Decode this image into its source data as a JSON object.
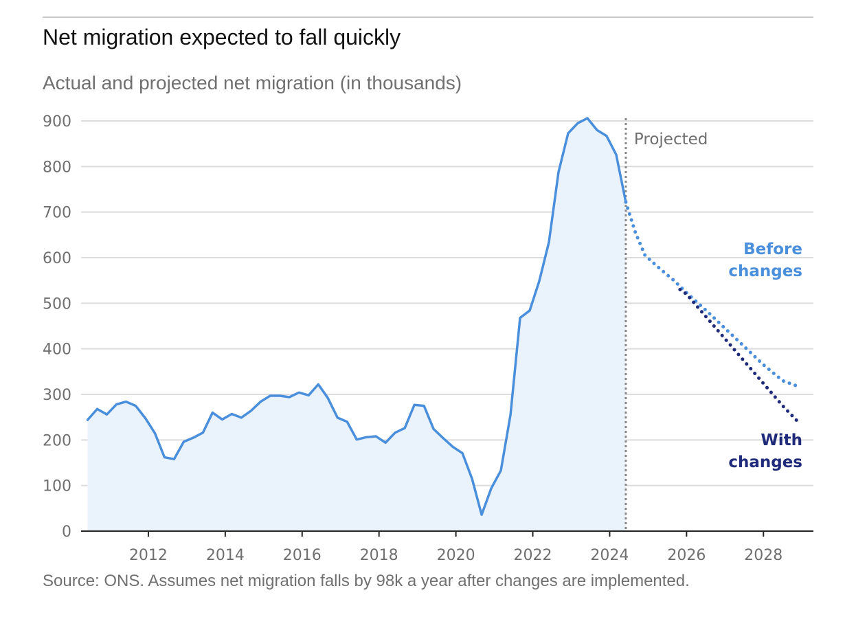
{
  "header": {
    "title": "Net migration expected to fall quickly",
    "subtitle": "Actual and projected net migration (in thousands)"
  },
  "footer": {
    "source": "Source: ONS. Assumes net migration falls by 98k a year after changes are implemented."
  },
  "colors": {
    "actual": "#4a8fdc",
    "fill": "#eaf2fb",
    "before_changes": "#4a8fdc",
    "with_changes": "#1f2a7a",
    "grid": "#dcdcdc",
    "projection_line": "#888888"
  },
  "chart_data": {
    "type": "line",
    "title": "Net migration expected to fall quickly",
    "subtitle": "Actual and projected net migration (in thousands)",
    "xlim": [
      2010.25,
      2029.3
    ],
    "ylim": [
      0,
      900
    ],
    "x_ticks": [
      2012,
      2014,
      2016,
      2018,
      2020,
      2022,
      2024,
      2026,
      2028
    ],
    "y_ticks": [
      0,
      100,
      200,
      300,
      400,
      500,
      600,
      700,
      800,
      900
    ],
    "grid": true,
    "projection_start": 2024.42,
    "projection_label": "Projected",
    "series": [
      {
        "name": "",
        "style": "solid-area",
        "x": [
          2010.42,
          2010.67,
          2010.92,
          2011.17,
          2011.42,
          2011.67,
          2011.92,
          2012.17,
          2012.42,
          2012.67,
          2012.92,
          2013.17,
          2013.42,
          2013.67,
          2013.92,
          2014.17,
          2014.42,
          2014.67,
          2014.92,
          2015.17,
          2015.42,
          2015.67,
          2015.92,
          2016.17,
          2016.42,
          2016.67,
          2016.92,
          2017.17,
          2017.42,
          2017.67,
          2017.92,
          2018.17,
          2018.42,
          2018.67,
          2018.92,
          2019.17,
          2019.42,
          2019.67,
          2019.92,
          2020.17,
          2020.42,
          2020.67,
          2020.92,
          2021.17,
          2021.42,
          2021.67,
          2021.92,
          2022.17,
          2022.42,
          2022.67,
          2022.92,
          2023.17,
          2023.42,
          2023.67,
          2023.92,
          2024.17,
          2024.42
        ],
        "values": [
          244,
          268,
          256,
          278,
          284,
          275,
          248,
          215,
          162,
          158,
          196,
          205,
          216,
          260,
          245,
          257,
          249,
          264,
          284,
          297,
          297,
          294,
          304,
          298,
          322,
          292,
          249,
          240,
          201,
          206,
          208,
          194,
          216,
          226,
          277,
          275,
          224,
          204,
          185,
          171,
          115,
          36,
          94,
          133,
          255,
          468,
          484,
          549,
          634,
          788,
          873,
          895,
          906,
          880,
          867,
          826,
          722
        ]
      },
      {
        "name": "Before changes",
        "label_lines": [
          "Before",
          "changes"
        ],
        "style": "dotted",
        "x": [
          2024.42,
          2024.67,
          2024.92,
          2025.25,
          2025.67,
          2026.0,
          2026.5,
          2027.0,
          2027.5,
          2028.0,
          2028.5,
          2028.92
        ],
        "values": [
          722,
          655,
          605,
          580,
          550,
          523,
          485,
          445,
          405,
          365,
          330,
          317
        ]
      },
      {
        "name": "With changes",
        "label_lines": [
          "With",
          "changes"
        ],
        "style": "dotted",
        "x": [
          2025.83,
          2026.0,
          2026.5,
          2027.0,
          2027.5,
          2028.0,
          2028.5,
          2028.92
        ],
        "values": [
          530,
          520,
          471,
          422,
          373,
          324,
          275,
          238
        ]
      }
    ]
  }
}
